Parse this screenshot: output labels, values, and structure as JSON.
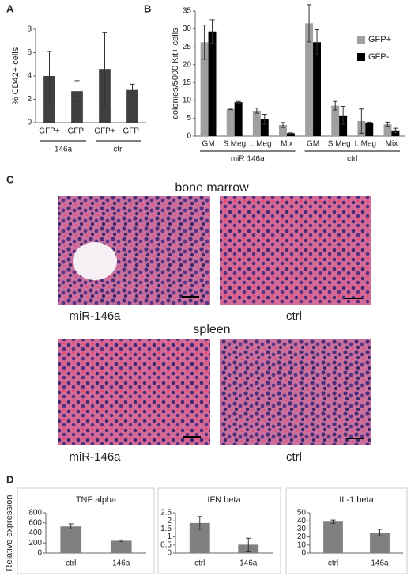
{
  "panel_labels": [
    "A",
    "B",
    "C",
    "D"
  ],
  "histology": {
    "rows": [
      {
        "title": "bone marrow",
        "labels": [
          "miR-146a",
          "ctrl"
        ]
      },
      {
        "title": "spleen",
        "labels": [
          "miR-146a",
          "ctrl"
        ]
      }
    ]
  },
  "chart_data": [
    {
      "type": "bar",
      "ylabel": "% CD42+ cells",
      "categories": [
        "GFP+",
        "GFP-",
        "GFP+",
        "GFP-"
      ],
      "groups": [
        "146a",
        "ctrl"
      ],
      "values": [
        4.0,
        2.7,
        4.6,
        2.8
      ],
      "errors": [
        2.1,
        0.9,
        3.1,
        0.5
      ],
      "color": "#404040",
      "ylim": [
        0,
        8
      ],
      "yticks": [
        0,
        2,
        4,
        6,
        8
      ]
    },
    {
      "type": "bar",
      "ylabel": "colonies/5000 Kit+ cells",
      "categories": [
        "GM",
        "S Meg",
        "L Meg",
        "Mix",
        "GM",
        "S Meg",
        "L Meg",
        "Mix"
      ],
      "groups": [
        "miR 146a",
        "ctrl"
      ],
      "series": [
        {
          "name": "GFP+",
          "color": "#a0a0a0",
          "values": [
            26.3,
            7.6,
            7.1,
            3.1,
            31.6,
            8.5,
            4.2,
            3.3
          ],
          "errors": [
            4.8,
            0.2,
            0.7,
            0.7,
            5.2,
            1.2,
            3.4,
            0.6
          ]
        },
        {
          "name": "GFP-",
          "color": "#000000",
          "values": [
            29.3,
            9.5,
            4.7,
            0.8,
            26.3,
            5.8,
            3.8,
            1.6
          ],
          "errors": [
            3.3,
            0.2,
            1.4,
            0.1,
            3.5,
            2.5,
            0.1,
            0.6
          ]
        }
      ],
      "ylim": [
        0,
        35
      ],
      "yticks": [
        0,
        5,
        10,
        15,
        20,
        25,
        30,
        35
      ]
    },
    {
      "type": "bar",
      "title": "TNF alpha",
      "ylabel": "Relative expression",
      "categories": [
        "ctrl",
        "146a"
      ],
      "values": [
        530,
        245
      ],
      "errors": [
        50,
        15
      ],
      "color": "#808080",
      "ylim": [
        0,
        800
      ],
      "yticks": [
        0,
        200,
        400,
        600,
        800
      ]
    },
    {
      "type": "bar",
      "title": "IFN beta",
      "categories": [
        "ctrl",
        "146a"
      ],
      "values": [
        1.87,
        0.52
      ],
      "errors": [
        0.4,
        0.4
      ],
      "color": "#808080",
      "ylim": [
        0,
        2.5
      ],
      "yticks": [
        0,
        0.5,
        1,
        1.5,
        2,
        2.5
      ]
    },
    {
      "type": "bar",
      "title": "IL-1 beta",
      "categories": [
        "ctrl",
        "146a"
      ],
      "values": [
        39,
        25.5
      ],
      "errors": [
        2,
        4
      ],
      "color": "#808080",
      "ylim": [
        0,
        50
      ],
      "yticks": [
        0,
        10,
        20,
        30,
        40,
        50
      ]
    }
  ]
}
